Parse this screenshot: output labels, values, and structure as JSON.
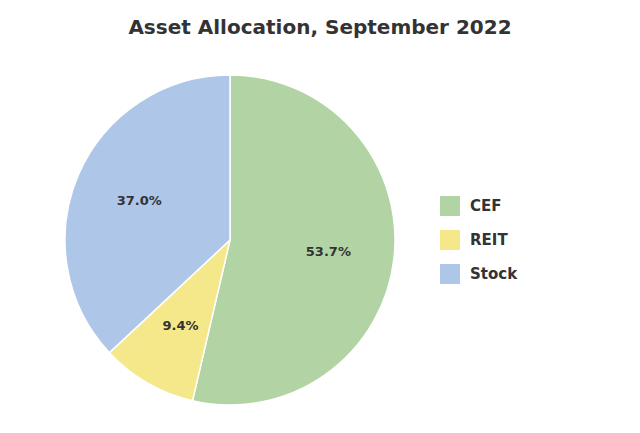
{
  "chart_data": {
    "type": "pie",
    "title": "Asset Allocation, September 2022",
    "categories": [
      "CEF",
      "REIT",
      "Stock"
    ],
    "values": [
      53.7,
      9.4,
      37.0
    ],
    "value_labels": [
      "53.7%",
      "9.4%",
      "37.0%"
    ],
    "colors": [
      "#b2d4a4",
      "#f5e88a",
      "#aec6e8"
    ],
    "data_labels": true,
    "legend": "right"
  }
}
